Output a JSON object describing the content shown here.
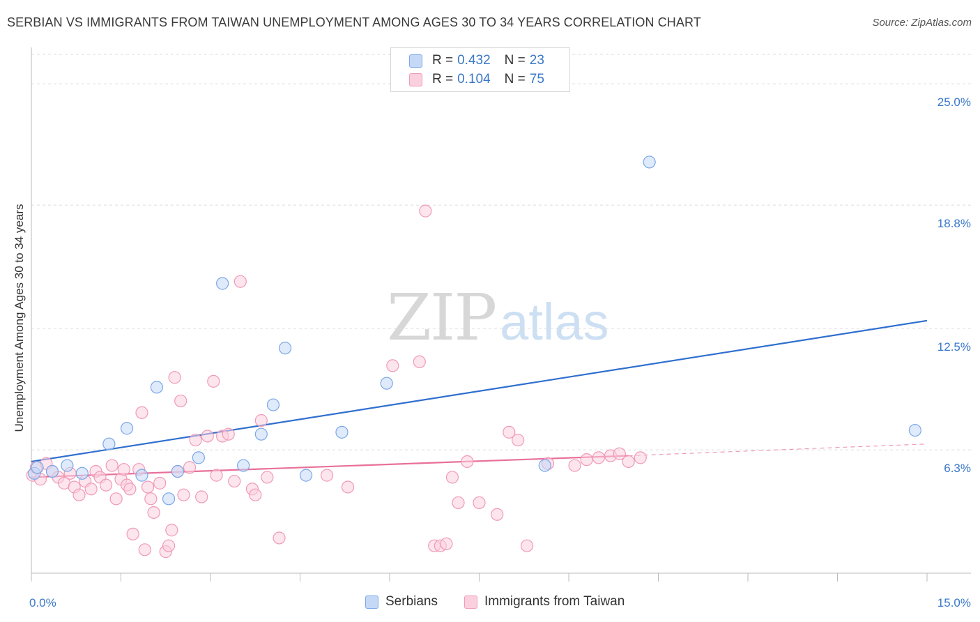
{
  "title": "SERBIAN VS IMMIGRANTS FROM TAIWAN UNEMPLOYMENT AMONG AGES 30 TO 34 YEARS CORRELATION CHART",
  "source": "Source: ZipAtlas.com",
  "watermark": {
    "zip": "ZIP",
    "atlas": "atlas"
  },
  "legend": {
    "r_label": "R =",
    "n_label": "N =",
    "rows": [
      {
        "r": "0.432",
        "n": "23"
      },
      {
        "r": "0.104",
        "n": "75"
      }
    ]
  },
  "colors": {
    "serbians_fill": "#c5d9f7",
    "serbians_stroke": "#7aa7e8",
    "serbians_line": "#2f6fcf",
    "taiwan_fill": "#fbd0de",
    "taiwan_stroke": "#f09ab6",
    "taiwan_line": "#e8709a",
    "axis_value": "#3a78c9",
    "grid": "#dcdcdc"
  },
  "chart_data": {
    "type": "scatter",
    "title": "SERBIAN VS IMMIGRANTS FROM TAIWAN UNEMPLOYMENT AMONG AGES 30 TO 34 YEARS CORRELATION CHART",
    "xlabel": "",
    "ylabel": "Unemployment Among Ages 30 to 34 years",
    "xlim": [
      0,
      15
    ],
    "ylim": [
      0,
      26.5
    ],
    "x_tick_labels": [
      {
        "value": 0,
        "label": "0.0%"
      },
      {
        "value": 15,
        "label": "15.0%"
      }
    ],
    "y_ticks": [
      {
        "value": 6.3,
        "label": "6.3%"
      },
      {
        "value": 12.5,
        "label": "12.5%"
      },
      {
        "value": 18.8,
        "label": "18.8%"
      },
      {
        "value": 25.0,
        "label": "25.0%"
      }
    ],
    "grid": true,
    "legend_position": "top-center",
    "series": [
      {
        "name": "Serbians",
        "r": 0.432,
        "n": 23,
        "trend": {
          "x0": 0,
          "y0": 5.7,
          "x1": 15,
          "y1": 12.9,
          "dashed_to": null
        },
        "points": [
          [
            0.05,
            5.1
          ],
          [
            0.1,
            5.4
          ],
          [
            0.35,
            5.2
          ],
          [
            0.6,
            5.5
          ],
          [
            0.85,
            5.1
          ],
          [
            1.3,
            6.6
          ],
          [
            1.6,
            7.4
          ],
          [
            1.85,
            5.0
          ],
          [
            2.1,
            9.5
          ],
          [
            2.3,
            3.8
          ],
          [
            2.45,
            5.2
          ],
          [
            2.8,
            5.9
          ],
          [
            3.2,
            14.8
          ],
          [
            3.55,
            5.5
          ],
          [
            3.85,
            7.1
          ],
          [
            4.05,
            8.6
          ],
          [
            4.25,
            11.5
          ],
          [
            4.6,
            5.0
          ],
          [
            5.2,
            7.2
          ],
          [
            5.95,
            9.7
          ],
          [
            8.6,
            5.5
          ],
          [
            10.35,
            21.0
          ],
          [
            14.8,
            7.3
          ]
        ]
      },
      {
        "name": "Immigrants from Taiwan",
        "r": 0.104,
        "n": 75,
        "trend": {
          "x0": 0,
          "y0": 4.9,
          "x1": 10.0,
          "y1": 6.0,
          "dashed_to": {
            "x": 15,
            "y": 6.6
          }
        },
        "points": [
          [
            0.02,
            5.0
          ],
          [
            0.08,
            5.4
          ],
          [
            0.15,
            4.8
          ],
          [
            0.25,
            5.6
          ],
          [
            0.35,
            5.2
          ],
          [
            0.45,
            4.9
          ],
          [
            0.55,
            4.6
          ],
          [
            0.65,
            5.1
          ],
          [
            0.72,
            4.4
          ],
          [
            0.8,
            4.0
          ],
          [
            0.9,
            4.7
          ],
          [
            1.0,
            4.3
          ],
          [
            1.08,
            5.2
          ],
          [
            1.15,
            4.9
          ],
          [
            1.25,
            4.5
          ],
          [
            1.35,
            5.5
          ],
          [
            1.42,
            3.8
          ],
          [
            1.5,
            4.8
          ],
          [
            1.55,
            5.3
          ],
          [
            1.6,
            4.5
          ],
          [
            1.65,
            4.3
          ],
          [
            1.7,
            2.0
          ],
          [
            1.8,
            5.3
          ],
          [
            1.85,
            8.2
          ],
          [
            1.9,
            1.2
          ],
          [
            1.95,
            4.4
          ],
          [
            2.0,
            3.8
          ],
          [
            2.05,
            3.1
          ],
          [
            2.15,
            4.6
          ],
          [
            2.25,
            1.1
          ],
          [
            2.3,
            1.4
          ],
          [
            2.35,
            2.2
          ],
          [
            2.4,
            10.0
          ],
          [
            2.45,
            5.2
          ],
          [
            2.5,
            8.8
          ],
          [
            2.55,
            4.0
          ],
          [
            2.65,
            5.4
          ],
          [
            2.75,
            6.8
          ],
          [
            2.85,
            3.9
          ],
          [
            2.95,
            7.0
          ],
          [
            3.05,
            9.8
          ],
          [
            3.1,
            5.0
          ],
          [
            3.2,
            7.0
          ],
          [
            3.3,
            7.1
          ],
          [
            3.4,
            4.7
          ],
          [
            3.5,
            14.9
          ],
          [
            3.7,
            4.3
          ],
          [
            3.75,
            4.0
          ],
          [
            3.85,
            7.8
          ],
          [
            3.95,
            4.9
          ],
          [
            4.15,
            1.8
          ],
          [
            4.95,
            5.0
          ],
          [
            5.3,
            4.4
          ],
          [
            6.05,
            10.6
          ],
          [
            6.5,
            10.8
          ],
          [
            6.6,
            18.5
          ],
          [
            6.75,
            1.4
          ],
          [
            6.85,
            1.4
          ],
          [
            6.95,
            1.5
          ],
          [
            7.05,
            4.9
          ],
          [
            7.15,
            3.6
          ],
          [
            7.3,
            5.7
          ],
          [
            7.5,
            3.6
          ],
          [
            7.8,
            3.0
          ],
          [
            8.0,
            7.2
          ],
          [
            8.15,
            6.8
          ],
          [
            8.3,
            1.4
          ],
          [
            8.65,
            5.6
          ],
          [
            9.1,
            5.5
          ],
          [
            9.3,
            5.8
          ],
          [
            9.5,
            5.9
          ],
          [
            9.7,
            6.0
          ],
          [
            9.85,
            6.1
          ],
          [
            10.0,
            5.7
          ],
          [
            10.2,
            5.9
          ]
        ]
      }
    ]
  }
}
